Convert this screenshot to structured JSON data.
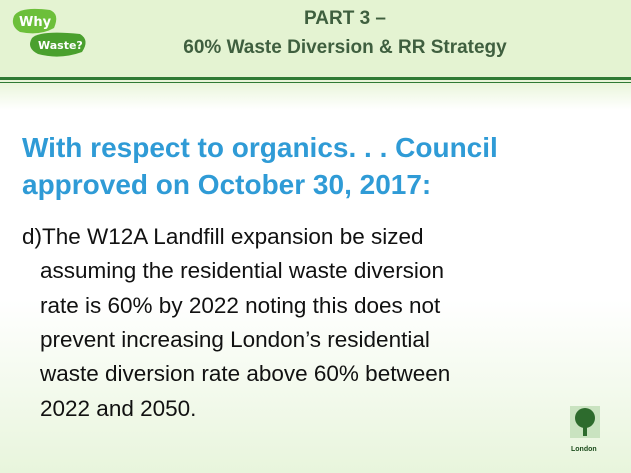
{
  "logo": {
    "top": "Why",
    "bottom": "Waste?"
  },
  "header": {
    "title_line1": "PART 3 –",
    "title_line2": "60% Waste Diversion & RR Strategy"
  },
  "heading": {
    "lines": [
      "With respect to organics. . . Council",
      "approved on October 30, 2017:"
    ]
  },
  "body": {
    "lines": [
      "d)The W12A Landfill expansion be sized",
      "assuming the residential waste diversion",
      "rate is 60% by 2022 noting this does not",
      "prevent increasing London’s residential",
      "waste diversion rate above 60% between",
      "2022 and 2050."
    ]
  },
  "footer": {
    "logo_label": "London"
  }
}
